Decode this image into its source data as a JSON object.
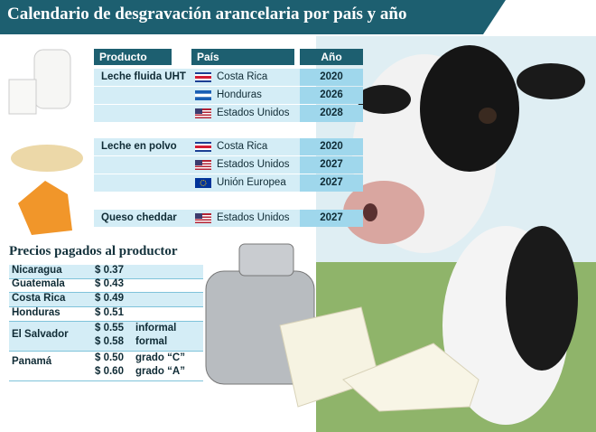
{
  "title": "Calendario de desgravación arancelaria por país y año",
  "tariff_table": {
    "headers": [
      "Producto",
      "País",
      "Año"
    ],
    "groups": [
      {
        "product": "Leche fluida UHT",
        "rows": [
          {
            "country": "Costa Rica",
            "year": 2020
          },
          {
            "country": "Honduras",
            "year": 2026
          },
          {
            "country": "Estados Unidos",
            "year": 2028
          }
        ]
      },
      {
        "product": "Leche en polvo",
        "rows": [
          {
            "country": "Costa Rica",
            "year": 2020
          },
          {
            "country": "Estados Unidos",
            "year": 2027
          },
          {
            "country": "Unión Europea",
            "year": 2027
          }
        ]
      },
      {
        "product": "Queso cheddar",
        "rows": [
          {
            "country": "Estados Unidos",
            "year": 2027
          }
        ]
      }
    ]
  },
  "prices": {
    "title": "Precios pagados al productor",
    "rows": [
      {
        "country": "Nicaragua",
        "prices": [
          {
            "price": "$ 0.37"
          }
        ]
      },
      {
        "country": "Guatemala",
        "prices": [
          {
            "price": "$ 0.43"
          }
        ]
      },
      {
        "country": "Costa Rica",
        "prices": [
          {
            "price": "$ 0.49"
          }
        ]
      },
      {
        "country": "Honduras",
        "prices": [
          {
            "price": "$ 0.51"
          }
        ]
      },
      {
        "country": "El Salvador",
        "prices": [
          {
            "price": "$ 0.55",
            "note": "informal"
          },
          {
            "price": "$ 0.58",
            "note": "formal"
          }
        ]
      },
      {
        "country": "Panamá",
        "prices": [
          {
            "price": "$ 0.50",
            "note": "grado “C”"
          },
          {
            "price": "$ 0.60",
            "note": "grado “A”"
          }
        ]
      }
    ]
  }
}
